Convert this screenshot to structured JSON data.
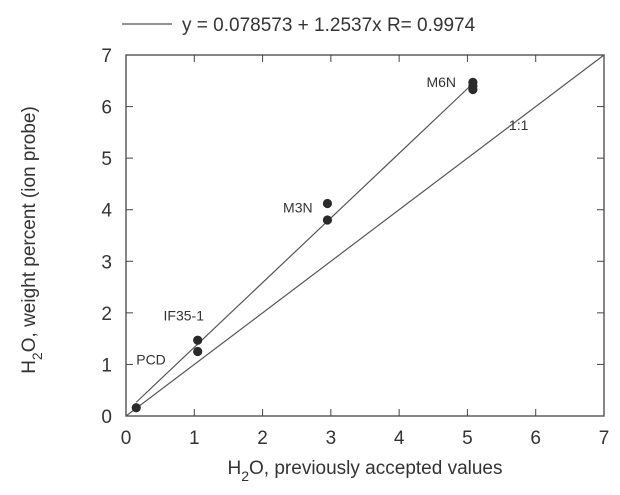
{
  "chart_data": {
    "type": "scatter",
    "title": "",
    "xlabel_parts": [
      "H",
      "2",
      "O, previously  accepted values"
    ],
    "ylabel_parts": [
      "H",
      "2",
      "O, weight  percent  (ion probe)"
    ],
    "xlim": [
      0,
      7
    ],
    "ylim": [
      0,
      7
    ],
    "x_ticks": [
      "0",
      "1",
      "2",
      "3",
      "4",
      "5",
      "6",
      "7"
    ],
    "y_ticks": [
      "0",
      "1",
      "2",
      "3",
      "4",
      "5",
      "6",
      "7"
    ],
    "grid": false,
    "points": [
      {
        "x": 0.15,
        "y": 0.16
      },
      {
        "x": 1.05,
        "y": 1.25
      },
      {
        "x": 1.05,
        "y": 1.47
      },
      {
        "x": 2.95,
        "y": 3.8
      },
      {
        "x": 2.95,
        "y": 4.12
      },
      {
        "x": 5.08,
        "y": 6.33
      },
      {
        "x": 5.08,
        "y": 6.4
      },
      {
        "x": 5.08,
        "y": 6.47
      }
    ],
    "point_labels": [
      {
        "text": "PCD",
        "x": 0.15,
        "y": 1.0
      },
      {
        "text": "IF35-1",
        "x": 0.55,
        "y": 1.85
      },
      {
        "text": "M3N",
        "x": 2.3,
        "y": 3.95
      },
      {
        "text": "M6N",
        "x": 4.4,
        "y": 6.38
      }
    ],
    "regression": {
      "intercept": 0.078573,
      "slope": 1.2537,
      "x_range": [
        0.15,
        5.08
      ]
    },
    "identity_line": {
      "label": "1:1",
      "x_range": [
        0,
        7
      ]
    },
    "legend": {
      "position": "top",
      "entry": "y = 0.078573 + 1.2537x  R= 0.9974"
    }
  }
}
